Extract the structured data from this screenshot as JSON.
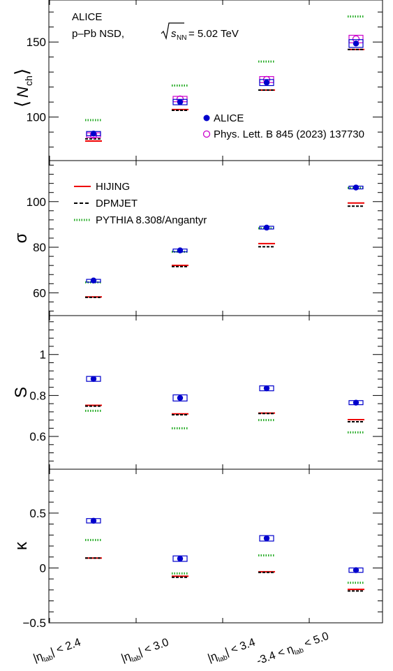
{
  "chart_data": {
    "type": "scatter",
    "experiment": "ALICE",
    "system": "p–Pb NSD,",
    "energy_sqrt": "s",
    "energy_sub": "NN",
    "energy_value": "= 5.02 TeV",
    "categories": [
      {
        "pre": "|η",
        "sub": "lab",
        "post": "| < 2.4"
      },
      {
        "pre": "|η",
        "sub": "lab",
        "post": "| < 3.0"
      },
      {
        "pre": "|η",
        "sub": "lab",
        "post": "| < 3.4"
      },
      {
        "pre": "-3.4 < η",
        "sub": "lab",
        "post": " < 5.0"
      }
    ],
    "legend_top": [
      {
        "label": "ALICE",
        "marker": "filled-circle",
        "color": "#0000cc"
      },
      {
        "label": "Phys. Lett. B 845 (2023) 137730",
        "marker": "open-circle",
        "color": "#cc00cc"
      }
    ],
    "legend_models": [
      {
        "label": "HIJING",
        "style": "solid",
        "color": "#ee0000"
      },
      {
        "label": "DPMJET",
        "style": "dashed",
        "color": "#000000"
      },
      {
        "label": "PYTHIA 8.308/Angantyr",
        "style": "dotted",
        "color": "#22aa22"
      }
    ],
    "panels": [
      {
        "ylabel": "⟨N⟩",
        "ylabel_main": "N",
        "ylabel_sub": "ch",
        "ylim": [
          71,
          178
        ],
        "ticks": [
          "100",
          "150"
        ],
        "tick_values": [
          100,
          150
        ],
        "alice": [
          89,
          110,
          123,
          149
        ],
        "alice_box": [
          1.4,
          1.8,
          2.0,
          2.6
        ],
        "plb": [
          88,
          112,
          125,
          152
        ],
        "plb_box": [
          1.5,
          1.8,
          2.0,
          2.5
        ],
        "hijing": [
          84,
          105,
          118,
          145
        ],
        "dpmjet": [
          85.5,
          104.5,
          118,
          145
        ],
        "pythia": [
          98,
          121,
          137,
          167
        ]
      },
      {
        "ylabel": "σ",
        "ylim": [
          50,
          118
        ],
        "ticks": [
          "60",
          "80",
          "100"
        ],
        "tick_values": [
          60,
          80,
          100
        ],
        "alice": [
          65.4,
          78.6,
          88.6,
          106.2
        ],
        "alice_box": [
          0.5,
          0.6,
          0.6,
          0.6
        ],
        "hijing": [
          58.2,
          72.0,
          81.6,
          99.4
        ],
        "dpmjet": [
          58.0,
          71.5,
          80.2,
          98.0
        ],
        "pythia": [
          64.6,
          78.0,
          88.3,
          106.0
        ]
      },
      {
        "ylabel": "S",
        "ylim": [
          0.44,
          1.19
        ],
        "ticks": [
          "0.6",
          "0.8",
          "1"
        ],
        "tick_values": [
          0.6,
          0.8,
          1.0
        ],
        "alice": [
          0.881,
          0.788,
          0.835,
          0.765
        ],
        "alice_box": [
          0.012,
          0.015,
          0.012,
          0.01
        ],
        "hijing": [
          0.752,
          0.71,
          0.714,
          0.682
        ],
        "dpmjet": [
          0.748,
          0.706,
          0.712,
          0.672
        ],
        "pythia": [
          0.725,
          0.64,
          0.68,
          0.62
        ]
      },
      {
        "ylabel": "κ",
        "ylim": [
          -0.5,
          0.9
        ],
        "ticks": [
          "−0.5",
          "0",
          "0.5"
        ],
        "tick_values": [
          -0.5,
          0,
          0.5
        ],
        "alice": [
          0.43,
          0.085,
          0.27,
          -0.02
        ],
        "alice_box": [
          0.02,
          0.025,
          0.025,
          0.02
        ],
        "hijing": [
          0.09,
          -0.075,
          -0.035,
          -0.195
        ],
        "dpmjet": [
          0.09,
          -0.085,
          -0.04,
          -0.21
        ],
        "pythia": [
          0.255,
          -0.05,
          0.115,
          -0.135
        ]
      }
    ]
  }
}
